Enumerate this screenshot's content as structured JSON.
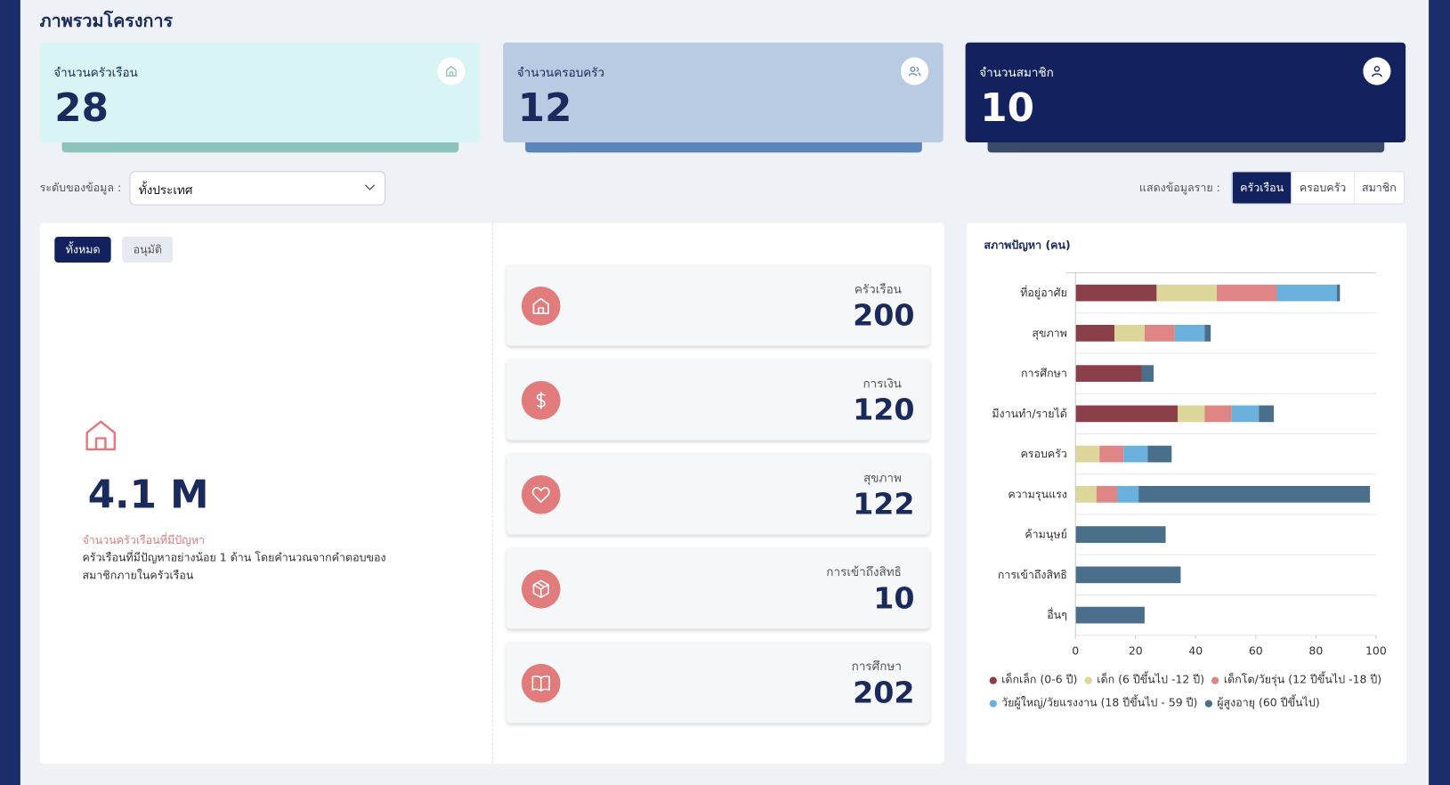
{
  "header": {
    "title": "ภาพรวมโครงการ"
  },
  "summary_cards": [
    {
      "label": "จำนวนครัวเรือน",
      "value": 28
    },
    {
      "label": "จำนวนครอบครัว",
      "value": 12
    },
    {
      "label": "จำนวนสมาชิก",
      "value": 10
    }
  ],
  "filter": {
    "label": "ระดับของข้อมูล :",
    "selected": "ทั้งประเทศ"
  },
  "view_toggle": {
    "label": "แสดงข้อมูลราย :",
    "options": [
      "ครัวเรือน",
      "ครอบครัว",
      "สมาชิก"
    ],
    "active": 0
  },
  "tabs": {
    "options": [
      "ทั้งหมด",
      "อนุมัติ"
    ],
    "active": 0
  },
  "highlight": {
    "value": "4.1 M",
    "caption": "จำนวนครัวเรือนที่มีปัญหา",
    "description": "ครัวเรือนที่มีปัญหาอย่างน้อย 1 ด้าน โดยคำนวณจากคำตอบของสมาชิกภายในครัวเรือน"
  },
  "stat_cards": [
    {
      "label": "ครัวเรือน",
      "value": 200
    },
    {
      "label": "การเงิน",
      "value": 120
    },
    {
      "label": "สุขภาพ",
      "value": 122
    },
    {
      "label": "การเข้าถึงสิทธิ",
      "value": 10
    },
    {
      "label": "การศึกษา",
      "value": 202
    }
  ],
  "chart_data": {
    "type": "stacked-bar-horizontal",
    "title": "สภาพปัญหา (คน)",
    "categories": [
      "ที่อยู่อาศัย",
      "สุขภาพ",
      "การศึกษา",
      "มีงานทำ/รายได้",
      "ครอบครัว",
      "ความรุนแรง",
      "ค้ามนุษย์",
      "การเข้าถึงสิทธิ",
      "อื่นๆ"
    ],
    "series": [
      {
        "name": "เด็กเล็ก (0-6 ปี)",
        "color": "#8b4049",
        "values": [
          27,
          13,
          22,
          34,
          0,
          0,
          0,
          0,
          0
        ]
      },
      {
        "name": "เด็ก (6 ปีขึ้นไป -12 ปี)",
        "color": "#ddd69a",
        "values": [
          20,
          10,
          0,
          9,
          8,
          7,
          0,
          0,
          0
        ]
      },
      {
        "name": "เด็กโต/วัยรุ่น (12 ปีขึ้นไป -18 ปี)",
        "color": "#e08585",
        "values": [
          20,
          10,
          0,
          9,
          8,
          7,
          0,
          0,
          0
        ]
      },
      {
        "name": "วัยผู้ใหญ่/วัยแรงงาน (18 ปีขึ้นไป - 59 ปี)",
        "color": "#6ab0dc",
        "values": [
          20,
          10,
          0,
          9,
          8,
          7,
          0,
          0,
          0
        ]
      },
      {
        "name": "ผู้สูงอายุ (60 ปีขึ้นไป)",
        "color": "#4a6f8a",
        "values": [
          1,
          2,
          4,
          5,
          8,
          77,
          30,
          35,
          23
        ]
      }
    ],
    "xlim": [
      0,
      100
    ],
    "xticks": [
      0,
      20,
      40,
      60,
      80,
      100
    ]
  }
}
